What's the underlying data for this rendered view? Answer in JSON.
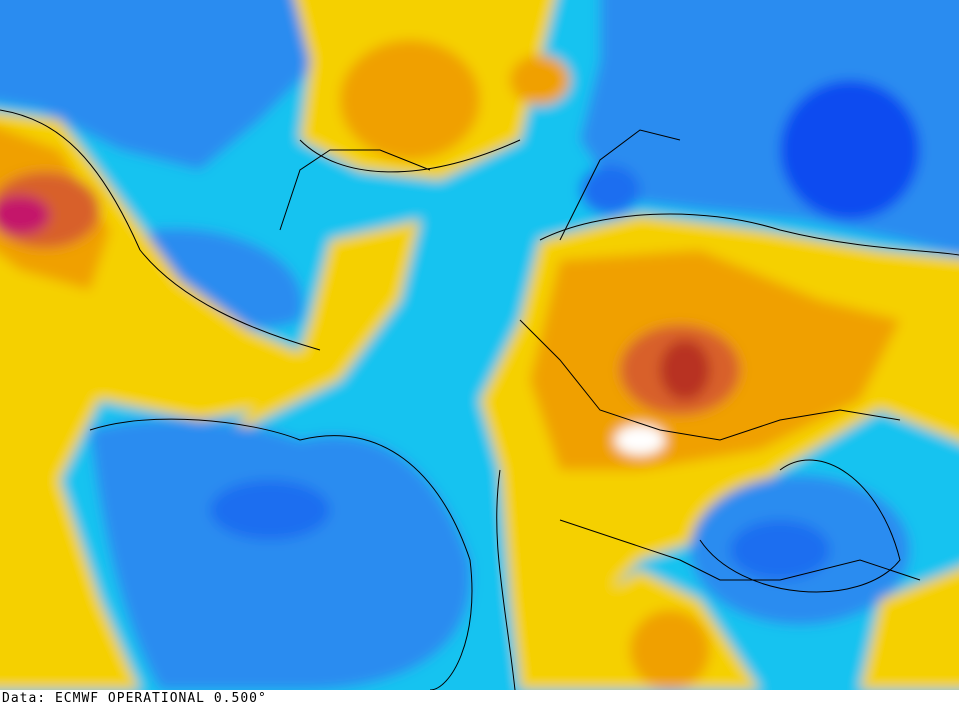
{
  "footer": {
    "text": "Data: ECMWF OPERATIONAL 0.500°"
  }
}
